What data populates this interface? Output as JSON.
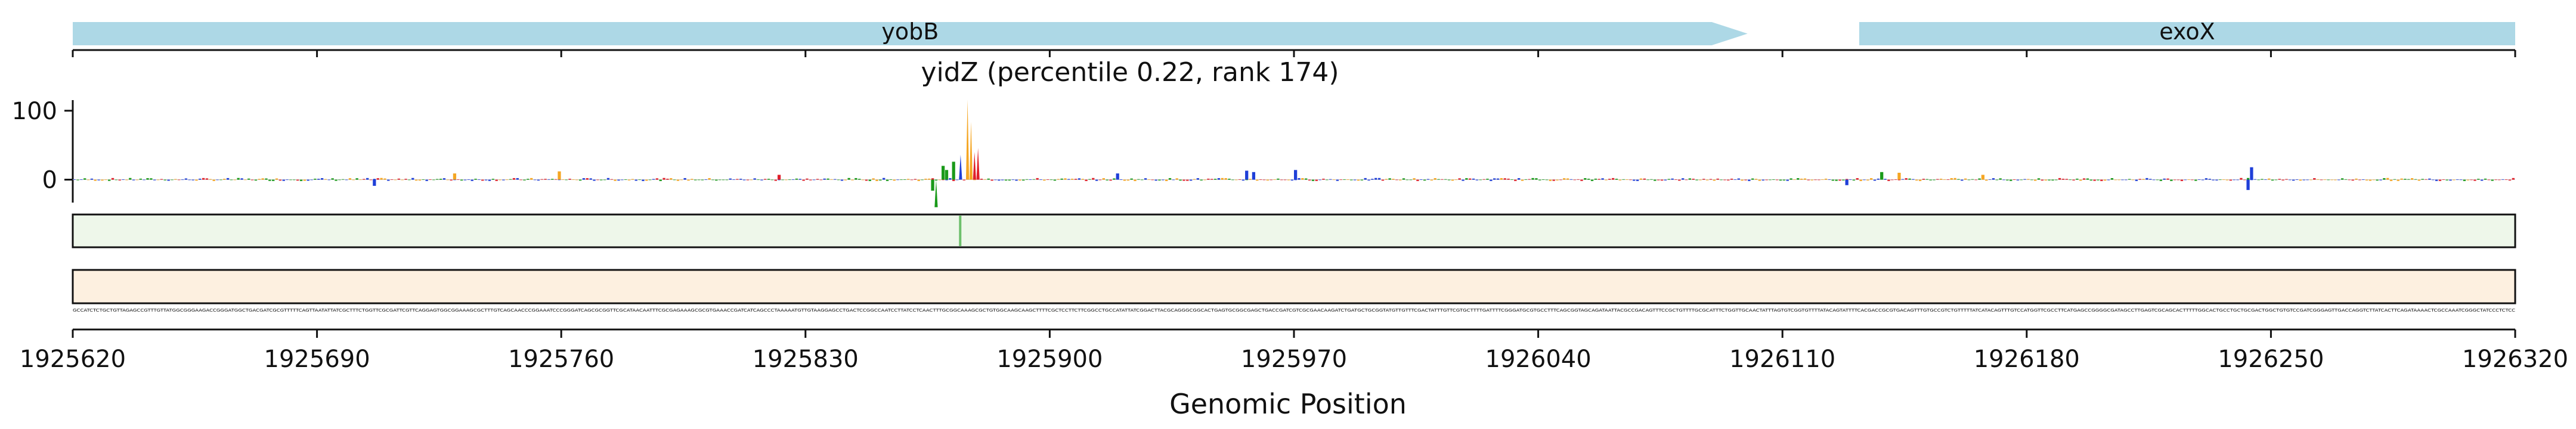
{
  "chart_data": {
    "type": "genome-track",
    "title": "yidZ (percentile 0.22, rank 174)",
    "xlabel": "Genomic Position",
    "x_range": [
      1925620,
      1926320
    ],
    "x_ticks": [
      1925620,
      1925690,
      1925760,
      1925830,
      1925900,
      1925970,
      1926040,
      1926110,
      1926180,
      1926250,
      1926320
    ],
    "genes": [
      {
        "name": "yobB",
        "start": 1925620,
        "end": 1926100,
        "strand": "+",
        "color": "#add8e6"
      },
      {
        "name": "exoX",
        "start": 1926132,
        "end": 1926320,
        "strand": "-",
        "color": "#add8e6"
      }
    ],
    "attribution": {
      "ylim": [
        -35,
        118
      ],
      "y_ticks": [
        0,
        100
      ],
      "peaks": [
        {
          "position": 1925876,
          "value": 116,
          "base": "G"
        },
        {
          "position": 1925877,
          "value": 84,
          "base": "G"
        },
        {
          "position": 1925879,
          "value": 46,
          "base": "T"
        },
        {
          "position": 1925878,
          "value": 40,
          "base": "T"
        },
        {
          "position": 1925874,
          "value": 36,
          "base": "C"
        },
        {
          "position": 1925872,
          "value": 26,
          "base": "A"
        },
        {
          "position": 1925870,
          "value": 14,
          "base": "A"
        },
        {
          "position": 1925866,
          "value": -16,
          "base": "A"
        },
        {
          "position": 1925867,
          "value": -40,
          "base": "A"
        },
        {
          "position": 1925869,
          "value": 20,
          "base": "A"
        },
        {
          "position": 1925919,
          "value": 9,
          "base": "C"
        },
        {
          "position": 1925956,
          "value": 13,
          "base": "C"
        },
        {
          "position": 1925958,
          "value": 11,
          "base": "C"
        },
        {
          "position": 1925970,
          "value": 14,
          "base": "C"
        },
        {
          "position": 1925759,
          "value": 12,
          "base": "G"
        },
        {
          "position": 1925729,
          "value": 9,
          "base": "G"
        },
        {
          "position": 1925706,
          "value": -9,
          "base": "C"
        },
        {
          "position": 1925822,
          "value": 7,
          "base": "T"
        },
        {
          "position": 1926128,
          "value": -8,
          "base": "C"
        },
        {
          "position": 1926138,
          "value": 11,
          "base": "A"
        },
        {
          "position": 1926143,
          "value": 10,
          "base": "G"
        },
        {
          "position": 1926167,
          "value": 7,
          "base": "G"
        },
        {
          "position": 1926244,
          "value": 18,
          "base": "C"
        },
        {
          "position": 1926243,
          "value": -15,
          "base": "C"
        }
      ],
      "base_colors": {
        "A": "#1a9a1a",
        "C": "#1f3fd8",
        "G": "#f5a623",
        "T": "#e0202a"
      }
    },
    "track_green": {
      "color": "#e9f5e4",
      "marks": [
        {
          "position": 1925874,
          "intensity": 0.9
        }
      ],
      "edge": "#111111"
    },
    "track_orange": {
      "color": "#fdf0e0",
      "marks": [],
      "edge": "#111111"
    },
    "sequence": "GCCATCTCTGCTGTTAGAGCCGTTTGTTATGGCGGGAAGACCGGGATGGCTGACGATCGCGTTTTTCAGTTAATATTATCGCTTTCTGGTTCGCGATTCGTTCAGGAGTGGCGGAAAGCGCTTTGTCAGCAACCCGGAAATCCCGGGATCAGCGCGGTTCGCATAACAATTTCGCGAGAAAGCGCGTGAAACCGATCATCAGCCCTAAAAATGTTGTAAGGAGCCTGACTCCGGCCAATCCTTATCCTCAACTTTGCGGCAAAGCGCTGTGGCAAGCAAGCTTTTCGCTCCTTCTTCGGCCTGCCATATTATCGGACTTACGCAGGGCGGCACTGAGTGCGGCGAGCTGACCGATCGTCGCGAACAAGATCTGATGCTGCGGTATGTTGTTTCGACTATTTGTTCGTGCTTTTGATTTTCGGGATGCGTGCCTTTCAGCGGTAGCAGATAATTACGCCGACAGTTTCCGCTGTTTTGCGCATTTCTGGTTGCAACTATTTAGTGTCGGTGTTTTATACAGTATTTTCACGACCGCGTGACAGTTTGTGCCGTCTGTTTTTATCATACAGTTTGTCCATGGTTCGCCTTCATGAGCCGGGGCGATAGCCTTGAGTCGCAGCACTTTTTGGCACTGCCTGCTGCGACTGGCTGTGTCCGATCGGGAGTTGACCAGGTCTTATCACTTCAGATAAAACTCGCCAAATCGGGCTATCCCTCTCC",
    "sequence_fraction": 1
  }
}
